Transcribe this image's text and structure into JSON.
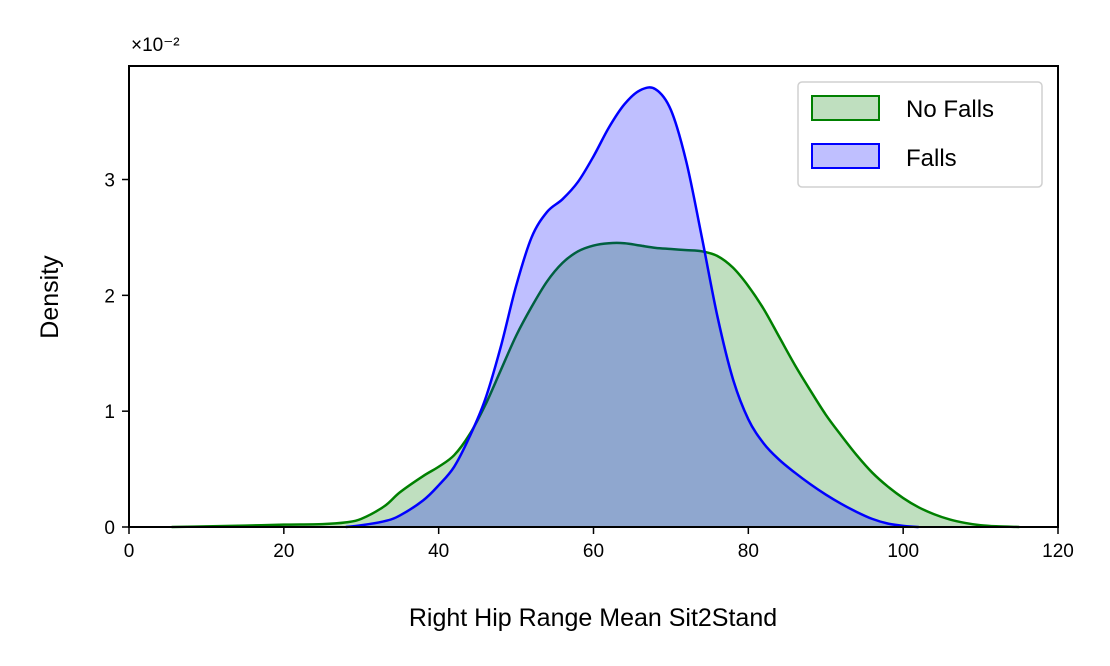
{
  "chart_data": {
    "type": "area",
    "xlabel": "Right Hip Range Mean Sit2Stand",
    "ylabel": "Density",
    "offset_text": "×10⁻²",
    "xlim": [
      0,
      120
    ],
    "ylim": [
      0,
      3.98
    ],
    "xticks": [
      0,
      20,
      40,
      60,
      80,
      100,
      120
    ],
    "yticks": [
      0,
      1,
      2,
      3
    ],
    "legend_position": "top-right",
    "grid": false,
    "series": [
      {
        "name": "No Falls",
        "color": "#008000",
        "fill": "#008000",
        "x": [
          5.5,
          10,
          15,
          20,
          25,
          28,
          30,
          33,
          35,
          38,
          40,
          42,
          44,
          46,
          48,
          50,
          52,
          54,
          56,
          58,
          60,
          62,
          64,
          66,
          68,
          70,
          72,
          74,
          76,
          78,
          80,
          82,
          84,
          86,
          88,
          90,
          92,
          94,
          96,
          98,
          100,
          102,
          104,
          106,
          108,
          110,
          112,
          115
        ],
        "values": [
          0.0,
          0.005,
          0.012,
          0.02,
          0.025,
          0.04,
          0.07,
          0.18,
          0.3,
          0.44,
          0.52,
          0.62,
          0.8,
          1.05,
          1.35,
          1.65,
          1.9,
          2.12,
          2.28,
          2.38,
          2.43,
          2.45,
          2.45,
          2.43,
          2.41,
          2.4,
          2.39,
          2.38,
          2.34,
          2.24,
          2.08,
          1.88,
          1.64,
          1.4,
          1.18,
          0.97,
          0.79,
          0.62,
          0.47,
          0.35,
          0.25,
          0.17,
          0.11,
          0.065,
          0.035,
          0.015,
          0.006,
          0.0
        ]
      },
      {
        "name": "Falls",
        "color": "#0000ff",
        "fill": "#0000ff",
        "x": [
          28,
          30,
          33,
          35,
          38,
          40,
          42,
          44,
          46,
          48,
          50,
          52,
          54,
          56,
          58,
          60,
          62,
          64,
          66,
          68,
          70,
          72,
          74,
          76,
          78,
          80,
          82,
          84,
          86,
          88,
          90,
          92,
          94,
          96,
          98,
          100,
          102
        ],
        "values": [
          0.0,
          0.015,
          0.05,
          0.1,
          0.23,
          0.36,
          0.52,
          0.78,
          1.1,
          1.55,
          2.08,
          2.5,
          2.72,
          2.83,
          2.98,
          3.2,
          3.45,
          3.65,
          3.77,
          3.78,
          3.6,
          3.15,
          2.5,
          1.82,
          1.28,
          0.93,
          0.72,
          0.58,
          0.47,
          0.37,
          0.28,
          0.2,
          0.13,
          0.07,
          0.03,
          0.01,
          0.0
        ]
      }
    ]
  }
}
